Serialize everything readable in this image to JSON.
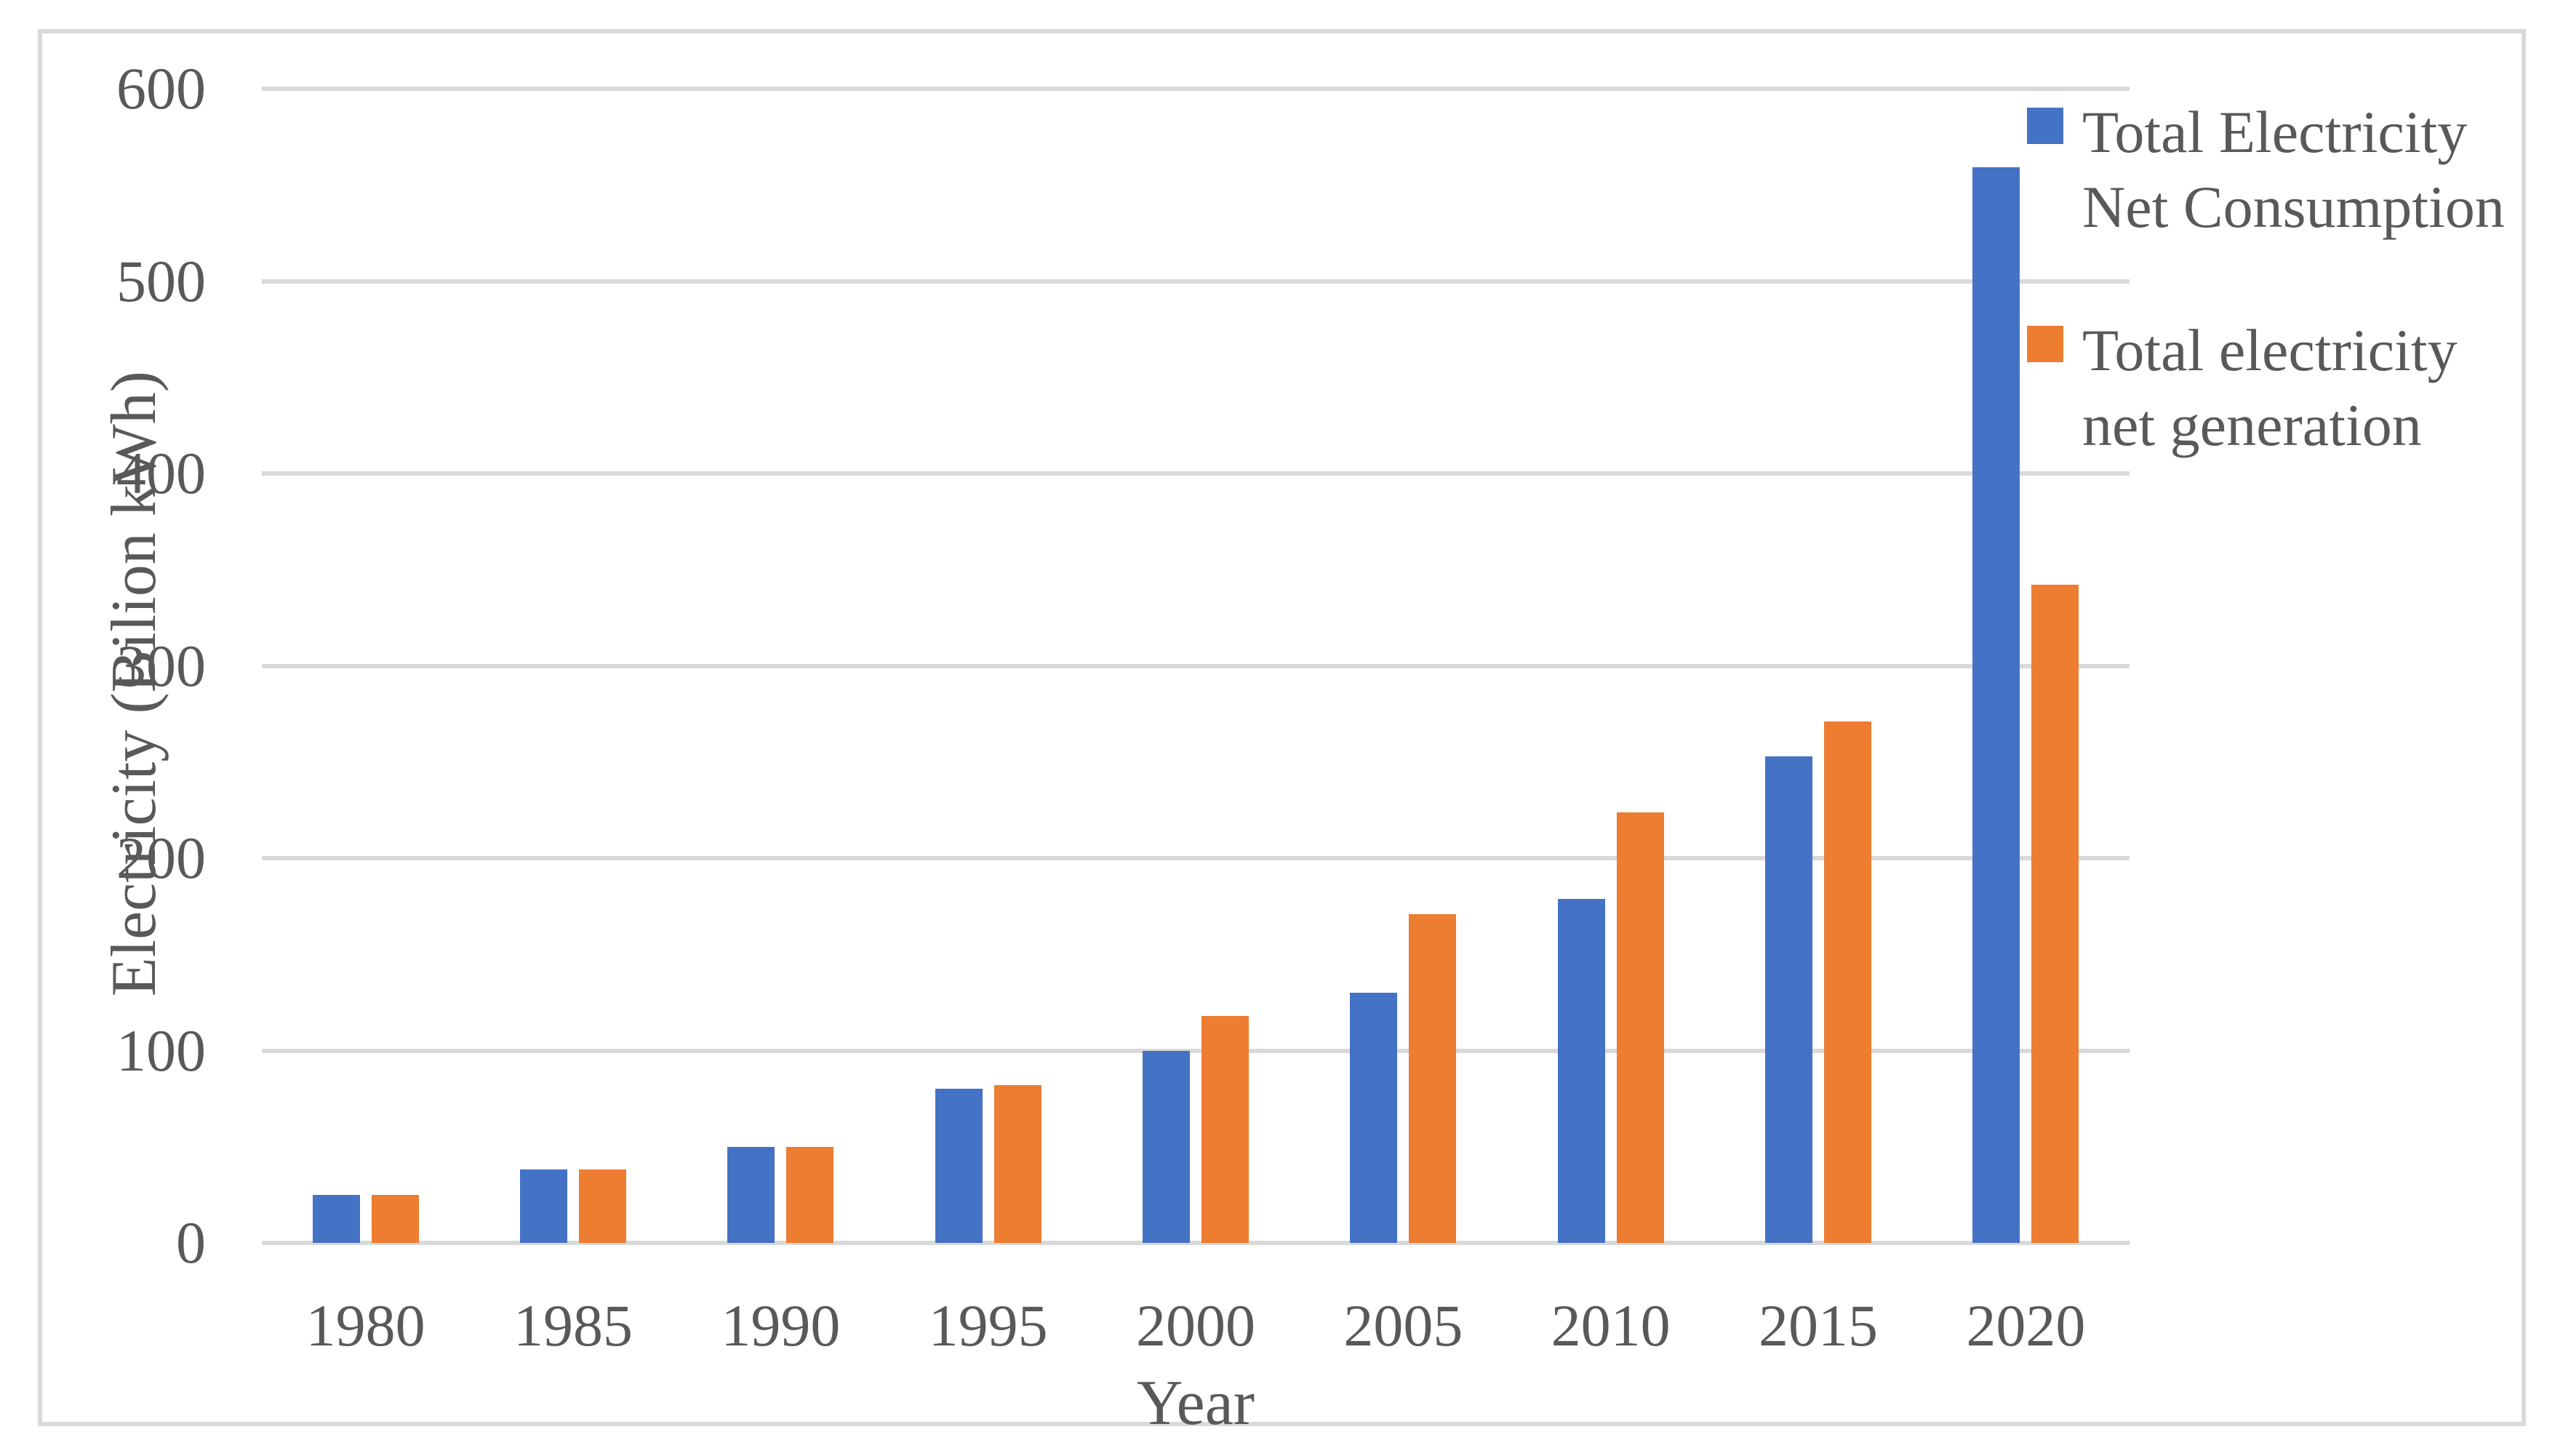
{
  "chart_data": {
    "type": "bar",
    "categories": [
      "1980",
      "1985",
      "1990",
      "1995",
      "2000",
      "2005",
      "2010",
      "2015",
      "2020"
    ],
    "series": [
      {
        "name": "Total Electricity Net Consumption",
        "legend_lines": [
          "Total Electricity",
          "Net Consumption"
        ],
        "color": "#4472C4",
        "values": [
          25,
          38,
          50,
          80,
          100,
          130,
          179,
          253,
          559
        ]
      },
      {
        "name": "Total electricity net generation",
        "legend_lines": [
          "Total electricity",
          "net generation"
        ],
        "color": "#ED7D31",
        "values": [
          25,
          38,
          50,
          82,
          118,
          171,
          224,
          271,
          342
        ]
      }
    ],
    "title": "",
    "xlabel": "Year",
    "ylabel": "Electricity (Bilion kWh)",
    "ylim": [
      0,
      600
    ],
    "ytick_step": 100,
    "yticks": [
      0,
      100,
      200,
      300,
      400,
      500,
      600
    ],
    "grid": true,
    "grid_color": "#D9D9D9",
    "text_color": "#595959",
    "legend_position": "right"
  }
}
